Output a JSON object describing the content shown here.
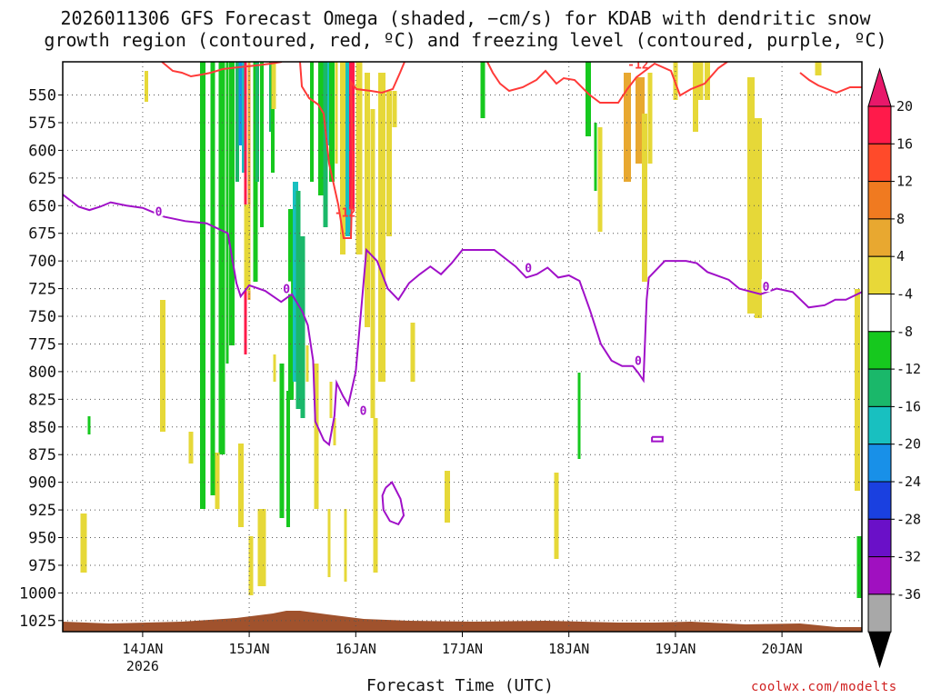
{
  "title_line1": "2026011306 GFS Forecast Omega (shaded, −cm/s) for KDAB with dendritic snow",
  "title_line2": "growth region (contoured, red, ºC) and freezing level (contoured, purple, ºC)",
  "xlabel": "Forecast Time (UTC)",
  "watermark": "coolwx.com/modelts",
  "chart_data": {
    "type": "heatmap",
    "y_axis": {
      "label": "",
      "ticks": [
        550,
        575,
        600,
        625,
        650,
        675,
        700,
        725,
        750,
        775,
        800,
        825,
        850,
        875,
        900,
        925,
        950,
        975,
        1000,
        1025
      ],
      "range": [
        520,
        1035
      ]
    },
    "x_axis": {
      "ticks": [
        "14JAN\n2026",
        "15JAN",
        "16JAN",
        "17JAN",
        "18JAN",
        "19JAN",
        "20JAN"
      ],
      "tick_labels": [
        {
          "line1": "14JAN",
          "line2": "2026"
        },
        {
          "line1": "15JAN",
          "line2": ""
        },
        {
          "line1": "16JAN",
          "line2": ""
        },
        {
          "line1": "17JAN",
          "line2": ""
        },
        {
          "line1": "18JAN",
          "line2": ""
        },
        {
          "line1": "19JAN",
          "line2": ""
        },
        {
          "line1": "20JAN",
          "line2": ""
        }
      ],
      "range_days": [
        13.25,
        20.75
      ]
    },
    "grid": true,
    "colorbar": {
      "labels": [
        "20",
        "16",
        "12",
        "8",
        "4",
        "-4",
        "-8",
        "-12",
        "-16",
        "-20",
        "-24",
        "-28",
        "-32",
        "-36"
      ],
      "colors": [
        "#ff1a4a",
        "#ff4a2a",
        "#f07a20",
        "#e8a830",
        "#e8d838",
        "#ffffff",
        "#16c81e",
        "#1ab86a",
        "#18c0c0",
        "#1890e8",
        "#1a40e0",
        "#6a10c8",
        "#a010c0",
        "#a8a8a8"
      ],
      "top_arrow_color": "#e8186a",
      "bottom_arrow_color": "#000000"
    },
    "freezing_level_contour": {
      "label": "0",
      "color": "#a010c8",
      "points": [
        [
          13.25,
          640
        ],
        [
          13.4,
          651
        ],
        [
          13.5,
          654
        ],
        [
          13.6,
          651
        ],
        [
          13.7,
          647
        ],
        [
          13.85,
          650
        ],
        [
          14.0,
          652
        ],
        [
          14.2,
          660
        ],
        [
          14.4,
          664
        ],
        [
          14.6,
          666
        ],
        [
          14.8,
          675
        ],
        [
          14.88,
          720
        ],
        [
          14.92,
          732
        ],
        [
          15.0,
          722
        ],
        [
          15.15,
          727
        ],
        [
          15.3,
          737
        ],
        [
          15.4,
          730
        ],
        [
          15.5,
          746
        ],
        [
          15.55,
          758
        ],
        [
          15.6,
          790
        ],
        [
          15.62,
          845
        ],
        [
          15.7,
          862
        ],
        [
          15.75,
          866
        ],
        [
          15.8,
          840
        ],
        [
          15.82,
          810
        ],
        [
          15.88,
          822
        ],
        [
          15.93,
          830
        ],
        [
          16.0,
          800
        ],
        [
          16.1,
          690
        ],
        [
          16.2,
          700
        ],
        [
          16.3,
          725
        ],
        [
          16.4,
          735
        ],
        [
          16.5,
          720
        ],
        [
          16.6,
          712
        ],
        [
          16.7,
          705
        ],
        [
          16.8,
          712
        ],
        [
          16.9,
          702
        ],
        [
          17.0,
          690
        ],
        [
          17.1,
          690
        ],
        [
          17.3,
          690
        ],
        [
          17.5,
          705
        ],
        [
          17.6,
          715
        ],
        [
          17.7,
          712
        ],
        [
          17.8,
          706
        ],
        [
          17.9,
          715
        ],
        [
          18.0,
          713
        ],
        [
          18.1,
          718
        ],
        [
          18.2,
          745
        ],
        [
          18.3,
          775
        ],
        [
          18.4,
          790
        ],
        [
          18.5,
          795
        ],
        [
          18.6,
          795
        ],
        [
          18.65,
          801
        ],
        [
          18.7,
          808
        ],
        [
          18.73,
          735
        ],
        [
          18.75,
          715
        ],
        [
          18.8,
          710
        ],
        [
          18.9,
          700
        ],
        [
          19.1,
          700
        ],
        [
          19.2,
          702
        ],
        [
          19.3,
          710
        ],
        [
          19.5,
          717
        ],
        [
          19.6,
          725
        ],
        [
          19.8,
          730
        ],
        [
          19.95,
          725
        ],
        [
          20.1,
          728
        ],
        [
          20.25,
          742
        ],
        [
          20.4,
          740
        ],
        [
          20.5,
          735
        ],
        [
          20.6,
          735
        ],
        [
          20.75,
          728
        ]
      ],
      "inline_labels": [
        [
          14.15,
          655
        ],
        [
          15.35,
          725
        ],
        [
          16.07,
          835
        ],
        [
          17.62,
          706
        ],
        [
          18.65,
          790
        ],
        [
          19.85,
          723
        ]
      ]
    },
    "small_closed_contours": [
      {
        "color": "#a010c8",
        "points": [
          [
            16.28,
            905
          ],
          [
            16.34,
            900
          ],
          [
            16.42,
            915
          ],
          [
            16.45,
            930
          ],
          [
            16.4,
            938
          ],
          [
            16.32,
            935
          ],
          [
            16.26,
            925
          ],
          [
            16.25,
            912
          ],
          [
            16.28,
            905
          ]
        ]
      },
      {
        "color": "#a010c8",
        "points": [
          [
            18.78,
            859
          ],
          [
            18.88,
            859
          ],
          [
            18.88,
            863
          ],
          [
            18.78,
            863
          ],
          [
            18.78,
            859
          ]
        ]
      }
    ],
    "dgz_contour": {
      "label": "-12",
      "color": "#ff3a38",
      "inline_labels": [
        [
          15.9,
          656
        ],
        [
          18.65,
          522
        ]
      ]
    },
    "ground_color": "#a0522d"
  }
}
